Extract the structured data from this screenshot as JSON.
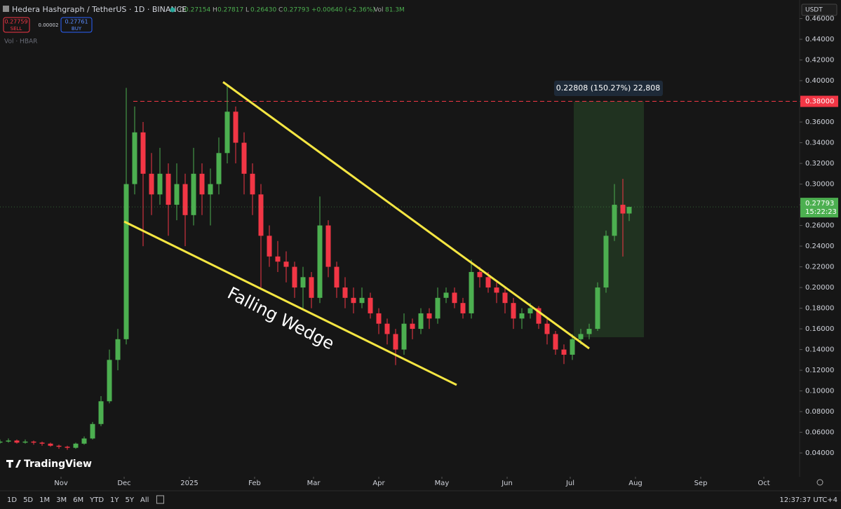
{
  "header": {
    "symbol": "Hedera Hashgraph / TetherUS · 1D · BINANCE",
    "ohlc": [
      {
        "key": "O",
        "text": "0.27154"
      },
      {
        "key": "H",
        "text": "0.27817"
      },
      {
        "key": "L",
        "text": "0.26430"
      },
      {
        "key": "C",
        "text": "0.27793"
      }
    ],
    "change": "+0.00640 (+2.36%)",
    "vol_key": "Vol",
    "vol": "81.3M",
    "sell_price": "0.27759",
    "sell": "SELL",
    "spread": "0.00002",
    "buy_price": "0.27761",
    "buy": "BUY",
    "vol_indicator": "Vol · HBAR",
    "currency": "USDT"
  },
  "chart_data": {
    "type": "candlestick",
    "up_color": "#4caf50",
    "down_color": "#f23645",
    "grid": false,
    "xlim": [
      2,
      382
    ],
    "ylim": [
      0.017,
      0.478
    ],
    "xticks": [
      {
        "value": 31,
        "label": "Nov"
      },
      {
        "value": 61,
        "label": "Dec"
      },
      {
        "value": 92,
        "label": "2025"
      },
      {
        "value": 123,
        "label": "Feb"
      },
      {
        "value": 151,
        "label": "Mar"
      },
      {
        "value": 182,
        "label": "Apr"
      },
      {
        "value": 212,
        "label": "May"
      },
      {
        "value": 243,
        "label": "Jun"
      },
      {
        "value": 273,
        "label": "Jul"
      },
      {
        "value": 304,
        "label": "Aug"
      },
      {
        "value": 335,
        "label": "Sep"
      },
      {
        "value": 365,
        "label": "Oct"
      }
    ],
    "yticks": [
      {
        "value": 0.04,
        "label": "0.04000"
      },
      {
        "value": 0.06,
        "label": "0.06000"
      },
      {
        "value": 0.08,
        "label": "0.08000"
      },
      {
        "value": 0.1,
        "label": "0.10000"
      },
      {
        "value": 0.12,
        "label": "0.12000"
      },
      {
        "value": 0.14,
        "label": "0.14000"
      },
      {
        "value": 0.16,
        "label": "0.16000"
      },
      {
        "value": 0.18,
        "label": "0.18000"
      },
      {
        "value": 0.2,
        "label": "0.20000"
      },
      {
        "value": 0.22,
        "label": "0.22000"
      },
      {
        "value": 0.24,
        "label": "0.24000"
      },
      {
        "value": 0.26,
        "label": "0.26000"
      },
      {
        "value": 0.28,
        "label": "0.28000"
      },
      {
        "value": 0.3,
        "label": "0.30000"
      },
      {
        "value": 0.32,
        "label": "0.32000"
      },
      {
        "value": 0.34,
        "label": "0.34000"
      },
      {
        "value": 0.36,
        "label": "0.36000"
      },
      {
        "value": 0.38,
        "label": "0.38000"
      },
      {
        "value": 0.4,
        "label": "0.40000"
      },
      {
        "value": 0.42,
        "label": "0.42000"
      },
      {
        "value": 0.44,
        "label": "0.44000"
      },
      {
        "value": 0.46,
        "label": "0.46000"
      }
    ],
    "x": [
      2,
      6,
      10,
      14,
      18,
      22,
      26,
      30,
      34,
      38,
      42,
      46,
      50,
      54,
      58,
      62,
      66,
      70,
      74,
      78,
      82,
      86,
      90,
      94,
      98,
      102,
      106,
      110,
      114,
      118,
      122,
      126,
      130,
      134,
      138,
      142,
      146,
      150,
      154,
      158,
      162,
      166,
      170,
      174,
      178,
      182,
      186,
      190,
      194,
      198,
      202,
      206,
      210,
      214,
      218,
      222,
      226,
      230,
      234,
      238,
      242,
      246,
      250,
      254,
      258,
      262,
      266,
      270,
      274,
      278,
      282,
      286,
      290,
      294,
      298,
      301
    ],
    "open": [
      0.05,
      0.051,
      0.052,
      0.05,
      0.051,
      0.05,
      0.049,
      0.047,
      0.046,
      0.045,
      0.049,
      0.054,
      0.068,
      0.09,
      0.13,
      0.15,
      0.3,
      0.35,
      0.31,
      0.29,
      0.31,
      0.28,
      0.3,
      0.27,
      0.31,
      0.29,
      0.3,
      0.33,
      0.37,
      0.34,
      0.31,
      0.29,
      0.25,
      0.23,
      0.225,
      0.22,
      0.2,
      0.21,
      0.19,
      0.26,
      0.22,
      0.2,
      0.19,
      0.185,
      0.19,
      0.175,
      0.165,
      0.155,
      0.14,
      0.165,
      0.16,
      0.175,
      0.17,
      0.19,
      0.195,
      0.185,
      0.175,
      0.215,
      0.21,
      0.2,
      0.195,
      0.185,
      0.17,
      0.175,
      0.18,
      0.165,
      0.155,
      0.14,
      0.135,
      0.15,
      0.155,
      0.16,
      0.2,
      0.25,
      0.28,
      0.27154
    ],
    "high": [
      0.053,
      0.054,
      0.053,
      0.053,
      0.052,
      0.051,
      0.05,
      0.048,
      0.047,
      0.05,
      0.056,
      0.07,
      0.095,
      0.14,
      0.16,
      0.393,
      0.375,
      0.36,
      0.33,
      0.335,
      0.32,
      0.32,
      0.31,
      0.335,
      0.32,
      0.315,
      0.345,
      0.396,
      0.375,
      0.35,
      0.32,
      0.3,
      0.26,
      0.245,
      0.235,
      0.225,
      0.22,
      0.215,
      0.288,
      0.265,
      0.225,
      0.21,
      0.2,
      0.2,
      0.195,
      0.18,
      0.17,
      0.16,
      0.175,
      0.17,
      0.18,
      0.18,
      0.2,
      0.2,
      0.2,
      0.19,
      0.227,
      0.22,
      0.215,
      0.205,
      0.2,
      0.19,
      0.18,
      0.185,
      0.182,
      0.17,
      0.158,
      0.145,
      0.155,
      0.16,
      0.165,
      0.205,
      0.255,
      0.3,
      0.305,
      0.27817
    ],
    "low": [
      0.049,
      0.05,
      0.049,
      0.049,
      0.048,
      0.047,
      0.046,
      0.044,
      0.043,
      0.044,
      0.048,
      0.053,
      0.066,
      0.088,
      0.12,
      0.145,
      0.29,
      0.24,
      0.27,
      0.28,
      0.25,
      0.265,
      0.24,
      0.26,
      0.27,
      0.26,
      0.29,
      0.32,
      0.32,
      0.29,
      0.27,
      0.2,
      0.22,
      0.215,
      0.205,
      0.19,
      0.18,
      0.18,
      0.185,
      0.21,
      0.19,
      0.18,
      0.175,
      0.18,
      0.17,
      0.155,
      0.145,
      0.125,
      0.135,
      0.15,
      0.155,
      0.16,
      0.165,
      0.185,
      0.18,
      0.17,
      0.17,
      0.2,
      0.195,
      0.185,
      0.175,
      0.16,
      0.16,
      0.17,
      0.16,
      0.145,
      0.135,
      0.126,
      0.13,
      0.145,
      0.15,
      0.158,
      0.195,
      0.245,
      0.23,
      0.2643
    ],
    "close": [
      0.051,
      0.052,
      0.05,
      0.051,
      0.05,
      0.049,
      0.047,
      0.046,
      0.045,
      0.049,
      0.054,
      0.068,
      0.09,
      0.13,
      0.15,
      0.3,
      0.35,
      0.31,
      0.29,
      0.31,
      0.28,
      0.3,
      0.27,
      0.31,
      0.29,
      0.3,
      0.33,
      0.37,
      0.34,
      0.31,
      0.29,
      0.25,
      0.23,
      0.225,
      0.22,
      0.2,
      0.21,
      0.19,
      0.26,
      0.22,
      0.2,
      0.19,
      0.185,
      0.19,
      0.175,
      0.165,
      0.155,
      0.14,
      0.165,
      0.16,
      0.175,
      0.17,
      0.19,
      0.195,
      0.185,
      0.175,
      0.215,
      0.21,
      0.2,
      0.195,
      0.185,
      0.17,
      0.175,
      0.18,
      0.165,
      0.155,
      0.14,
      0.135,
      0.15,
      0.155,
      0.16,
      0.2,
      0.25,
      0.28,
      0.27154,
      0.27793
    ],
    "level": {
      "value": 0.38,
      "label": "0.38000",
      "color": "#f23645"
    },
    "last_price": {
      "value": 0.27793,
      "label": "0.27793",
      "countdown": "15:22:23"
    },
    "measure": {
      "change": 0.22808,
      "label": "0.22808 (150.27%) 22,808"
    },
    "annotation": "Falling Wedge"
  },
  "footer": {
    "ranges": [
      "1D",
      "5D",
      "1M",
      "3M",
      "6M",
      "YTD",
      "1Y",
      "5Y",
      "All"
    ],
    "clock": "12:37:37 UTC+4",
    "brand": "TradingView"
  }
}
